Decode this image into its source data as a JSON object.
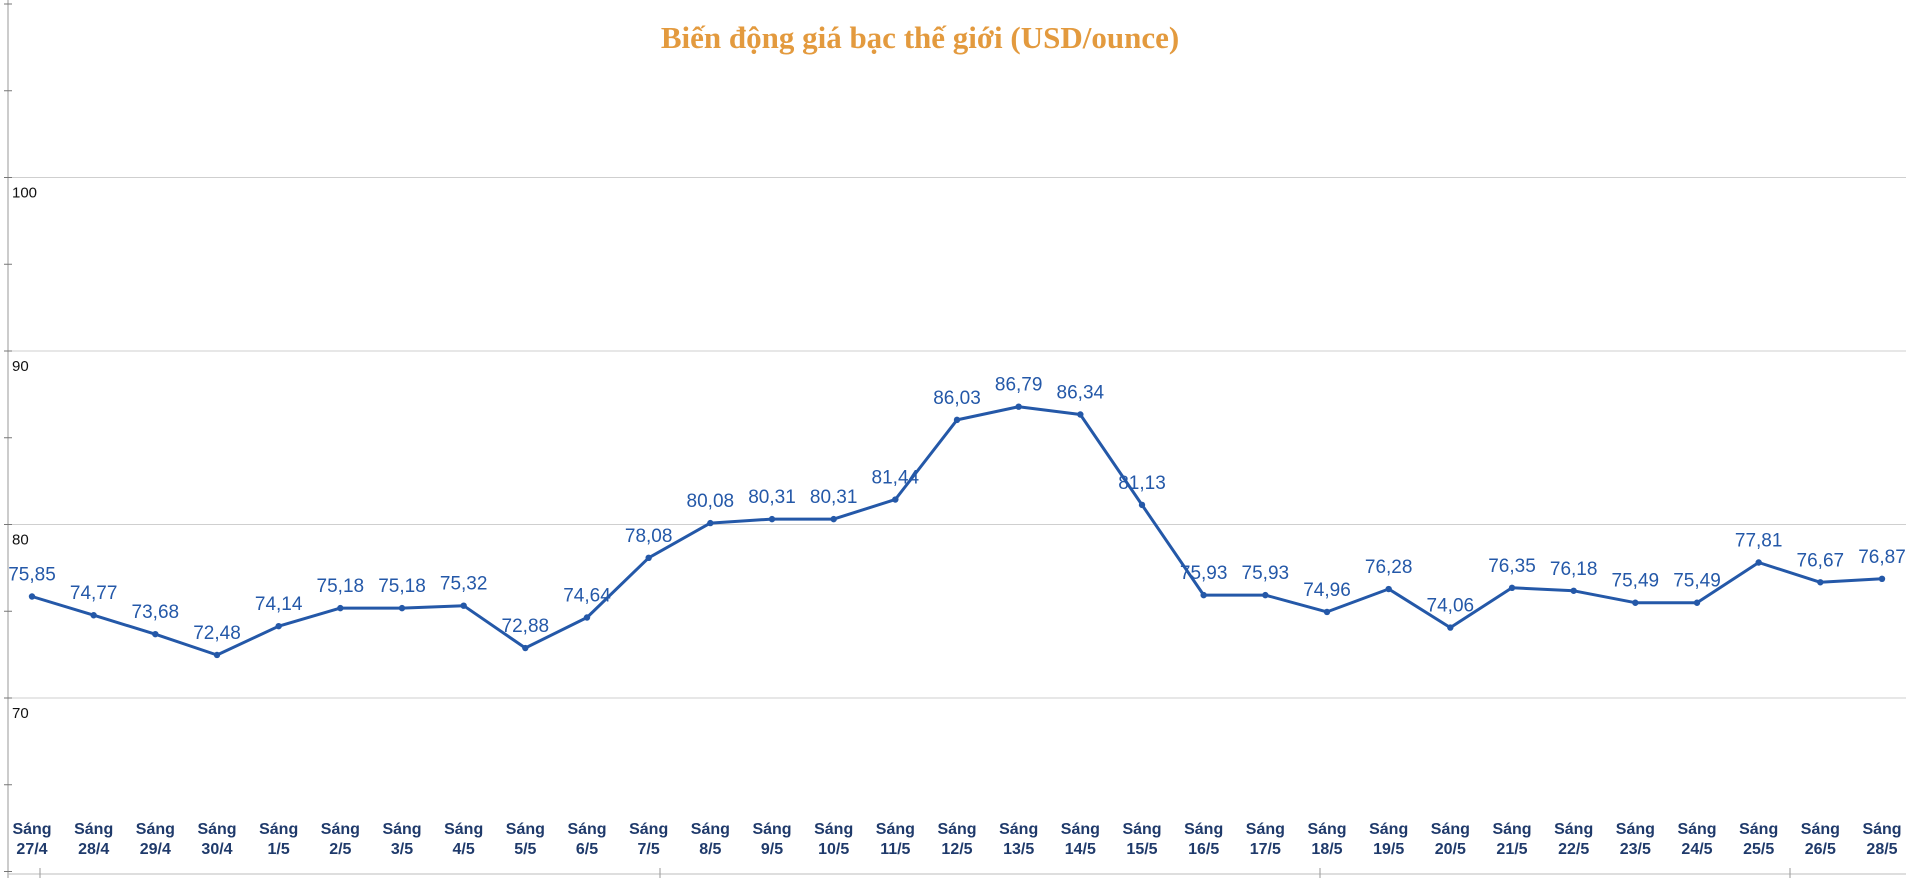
{
  "chart_data": {
    "type": "line",
    "title": "Biến động giá bạc thế giới (USD/ounce)",
    "xlabel": "",
    "ylabel": "",
    "ylim": [
      60,
      110
    ],
    "yticks": [
      "100",
      "90",
      "80",
      "70"
    ],
    "grid": true,
    "categories": [
      [
        "Sáng",
        "27/4"
      ],
      [
        "Sáng",
        "28/4"
      ],
      [
        "Sáng",
        "29/4"
      ],
      [
        "Sáng",
        "30/4"
      ],
      [
        "Sáng",
        "1/5"
      ],
      [
        "Sáng",
        "2/5"
      ],
      [
        "Sáng",
        "3/5"
      ],
      [
        "Sáng",
        "4/5"
      ],
      [
        "Sáng",
        "5/5"
      ],
      [
        "Sáng",
        "6/5"
      ],
      [
        "Sáng",
        "7/5"
      ],
      [
        "Sáng",
        "8/5"
      ],
      [
        "Sáng",
        "9/5"
      ],
      [
        "Sáng",
        "10/5"
      ],
      [
        "Sáng",
        "11/5"
      ],
      [
        "Sáng",
        "12/5"
      ],
      [
        "Sáng",
        "13/5"
      ],
      [
        "Sáng",
        "14/5"
      ],
      [
        "Sáng",
        "15/5"
      ],
      [
        "Sáng",
        "16/5"
      ],
      [
        "Sáng",
        "17/5"
      ],
      [
        "Sáng",
        "18/5"
      ],
      [
        "Sáng",
        "19/5"
      ],
      [
        "Sáng",
        "20/5"
      ],
      [
        "Sáng",
        "21/5"
      ],
      [
        "Sáng",
        "22/5"
      ],
      [
        "Sáng",
        "23/5"
      ],
      [
        "Sáng",
        "24/5"
      ],
      [
        "Sáng",
        "25/5"
      ],
      [
        "Sáng",
        "26/5"
      ],
      [
        "Sáng",
        "28/5"
      ]
    ],
    "values": [
      75.85,
      74.77,
      73.68,
      72.48,
      74.14,
      75.18,
      75.18,
      75.32,
      72.88,
      74.64,
      78.08,
      80.08,
      80.31,
      80.31,
      81.44,
      86.03,
      86.79,
      86.34,
      81.13,
      75.93,
      75.93,
      74.96,
      76.28,
      74.06,
      76.35,
      76.18,
      75.49,
      75.49,
      77.81,
      76.67,
      76.87
    ],
    "data_labels": [
      "75,85",
      "74,77",
      "73,68",
      "72,48",
      "74,14",
      "75,18",
      "75,18",
      "75,32",
      "72,88",
      "74,64",
      "78,08",
      "80,08",
      "80,31",
      "80,31",
      "81,44",
      "86,03",
      "86,79",
      "86,34",
      "81,13",
      "75,93",
      "75,93",
      "74,96",
      "76,28",
      "74,06",
      "76,35",
      "76,18",
      "75,49",
      "75,49",
      "77,81",
      "76,67",
      "76,87"
    ],
    "colors": {
      "title": "#E39A3E",
      "line": "#2458A8",
      "labels": "#2458A8",
      "xticks": "#1F3A6B",
      "grid": "#cfcfcf"
    }
  }
}
